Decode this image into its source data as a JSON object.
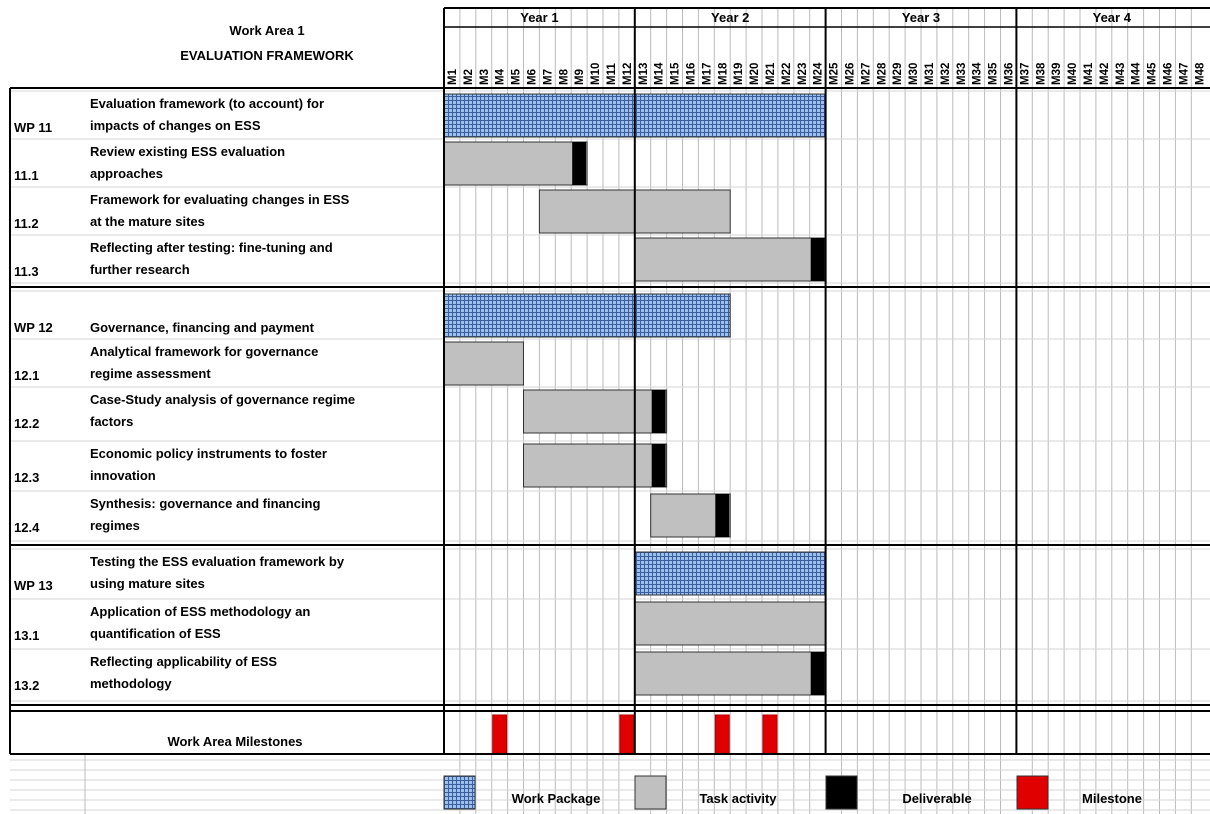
{
  "header": {
    "area_title": "Work Area 1",
    "area_subtitle": "EVALUATION FRAMEWORK"
  },
  "years": [
    "Year 1",
    "Year 2",
    "Year 3",
    "Year 4"
  ],
  "months": [
    "M1",
    "M2",
    "M3",
    "M4",
    "M5",
    "M6",
    "M7",
    "M8",
    "M9",
    "M10",
    "M11",
    "M12",
    "M13",
    "M14",
    "M15",
    "M16",
    "M17",
    "M18",
    "M19",
    "M20",
    "M21",
    "M22",
    "M23",
    "M24",
    "M25",
    "M26",
    "M27",
    "M28",
    "M29",
    "M30",
    "M31",
    "M32",
    "M33",
    "M34",
    "M35",
    "M36",
    "M37",
    "M38",
    "M39",
    "M40",
    "M41",
    "M42",
    "M43",
    "M44",
    "M45",
    "M46",
    "M47",
    "M48"
  ],
  "rows": [
    {
      "id": "WP 11",
      "lines": [
        "Evaluation framework (to account) for",
        "impacts of changes on ESS"
      ],
      "kind": "wp",
      "start": 1,
      "end": 24,
      "deliverable": null
    },
    {
      "id": "11.1",
      "lines": [
        "Review existing ESS evaluation",
        "approaches"
      ],
      "kind": "task",
      "start": 1,
      "end": 9,
      "deliverable": 9
    },
    {
      "id": "11.2",
      "lines": [
        "Framework for evaluating changes in ESS",
        "at the mature sites"
      ],
      "kind": "task",
      "start": 7,
      "end": 18,
      "deliverable": null
    },
    {
      "id": "11.3",
      "lines": [
        "Reflecting after testing: fine-tuning and",
        "further research"
      ],
      "kind": "task",
      "start": 13,
      "end": 24,
      "deliverable": 24
    },
    {
      "id": "WP 12",
      "lines": [
        "Governance, financing and payment"
      ],
      "kind": "wp",
      "start": 1,
      "end": 18,
      "deliverable": null
    },
    {
      "id": "12.1",
      "lines": [
        "Analytical framework for governance",
        "regime assessment"
      ],
      "kind": "task",
      "start": 1,
      "end": 5,
      "deliverable": null
    },
    {
      "id": "12.2",
      "lines": [
        "Case-Study analysis of governance regime",
        "factors"
      ],
      "kind": "task",
      "start": 6,
      "end": 14,
      "deliverable": 14
    },
    {
      "id": "12.3",
      "lines": [
        "Economic policy instruments to foster",
        "innovation"
      ],
      "kind": "task",
      "start": 6,
      "end": 14,
      "deliverable": 14
    },
    {
      "id": "12.4",
      "lines": [
        "Synthesis: governance and financing",
        "regimes"
      ],
      "kind": "task",
      "start": 14,
      "end": 18,
      "deliverable": 18
    },
    {
      "id": "WP 13",
      "lines": [
        "Testing the ESS evaluation framework by",
        "using mature sites"
      ],
      "kind": "wp",
      "start": 13,
      "end": 24,
      "deliverable": null
    },
    {
      "id": "13.1",
      "lines": [
        "Application of ESS methodology an",
        "quantification of ESS"
      ],
      "kind": "task",
      "start": 13,
      "end": 24,
      "deliverable": null
    },
    {
      "id": "13.2",
      "lines": [
        "Reflecting applicability of ESS",
        "methodology"
      ],
      "kind": "task",
      "start": 13,
      "end": 24,
      "deliverable": 24
    }
  ],
  "milestones": {
    "label": "Work Area Milestones",
    "months": [
      4,
      12,
      18,
      21
    ]
  },
  "legend": [
    {
      "key": "wp",
      "label": "Work Package"
    },
    {
      "key": "task",
      "label": "Task activity"
    },
    {
      "key": "deliverable",
      "label": "Deliverable"
    },
    {
      "key": "milestone",
      "label": "Milestone"
    }
  ],
  "colors": {
    "work_package": "#7fa8d6",
    "task": "#c0c0c0",
    "deliverable": "#000000",
    "milestone": "#e00000",
    "grid": "#bbbbbb"
  }
}
